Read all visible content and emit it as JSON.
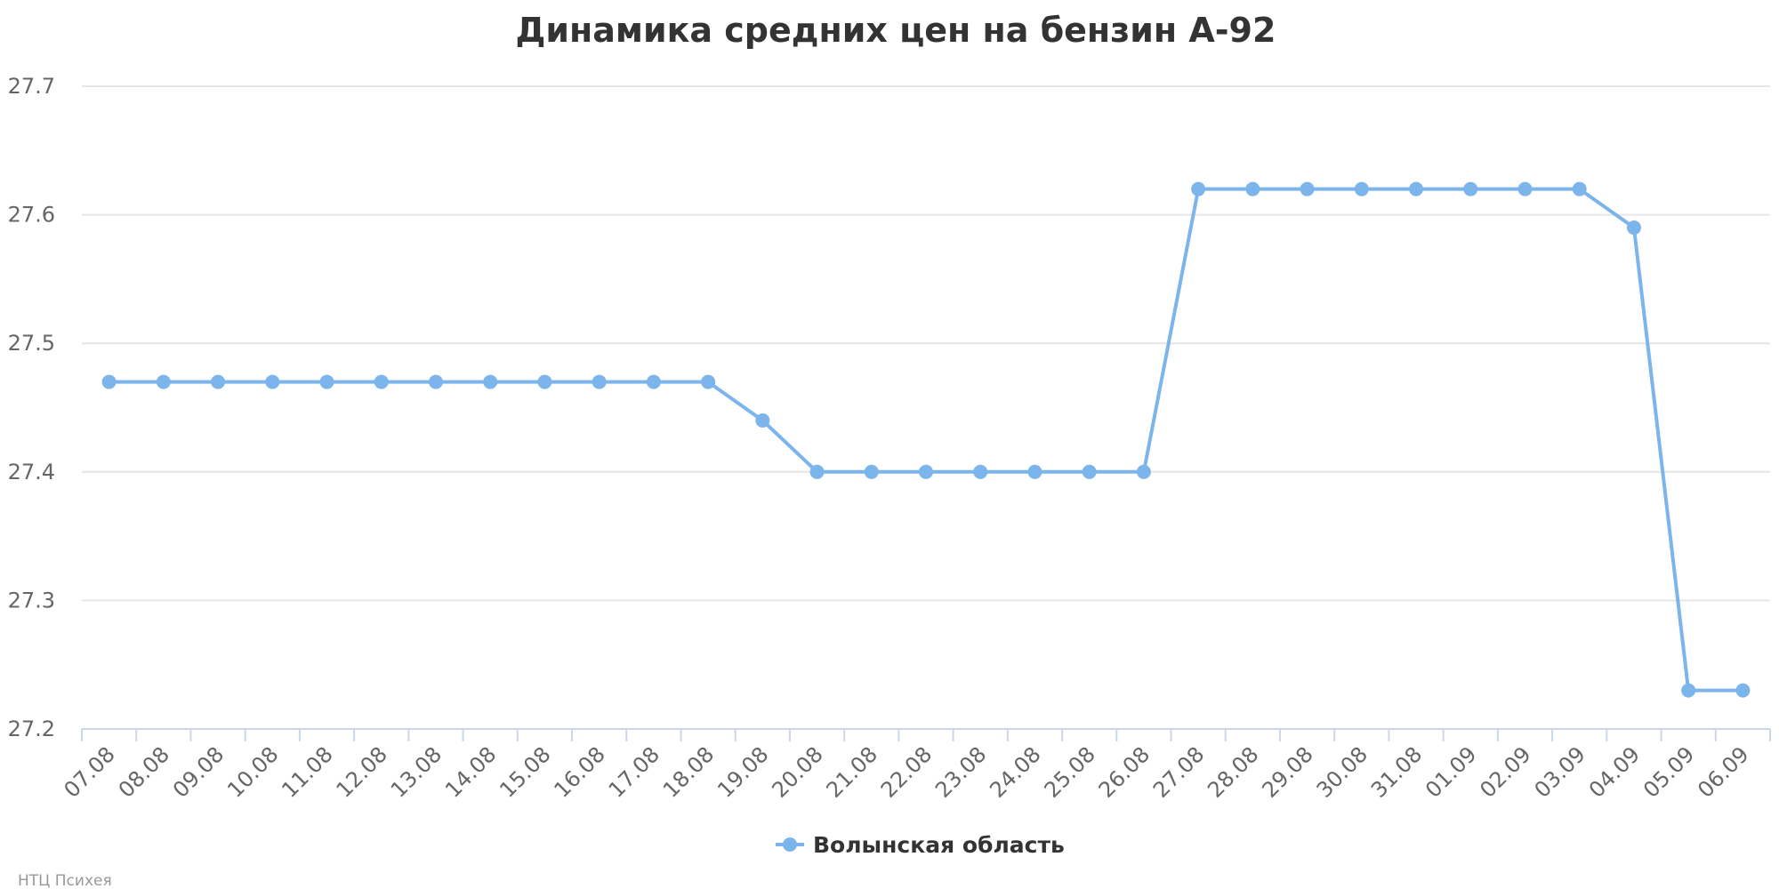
{
  "chart_data": {
    "type": "line",
    "title": "Динамика средних цен на бензин А-92",
    "categories": [
      "07.08",
      "08.08",
      "09.08",
      "10.08",
      "11.08",
      "12.08",
      "13.08",
      "14.08",
      "15.08",
      "16.08",
      "17.08",
      "18.08",
      "19.08",
      "20.08",
      "21.08",
      "22.08",
      "23.08",
      "24.08",
      "25.08",
      "26.08",
      "27.08",
      "28.08",
      "29.08",
      "30.08",
      "31.08",
      "01.09",
      "02.09",
      "03.09",
      "04.09",
      "05.09",
      "06.09"
    ],
    "series": [
      {
        "name": "Волынская область",
        "color": "#7cb5ec",
        "values": [
          27.47,
          27.47,
          27.47,
          27.47,
          27.47,
          27.47,
          27.47,
          27.47,
          27.47,
          27.47,
          27.47,
          27.47,
          27.44,
          27.4,
          27.4,
          27.4,
          27.4,
          27.4,
          27.4,
          27.4,
          27.62,
          27.62,
          27.62,
          27.62,
          27.62,
          27.62,
          27.62,
          27.62,
          27.59,
          27.23,
          27.23
        ]
      }
    ],
    "yticks": [
      "27.2",
      "27.3",
      "27.4",
      "27.5",
      "27.6",
      "27.7"
    ],
    "ylim": [
      27.2,
      27.7
    ],
    "grid": true,
    "legend": "bottom-center"
  },
  "credits": "НТЦ Психея"
}
